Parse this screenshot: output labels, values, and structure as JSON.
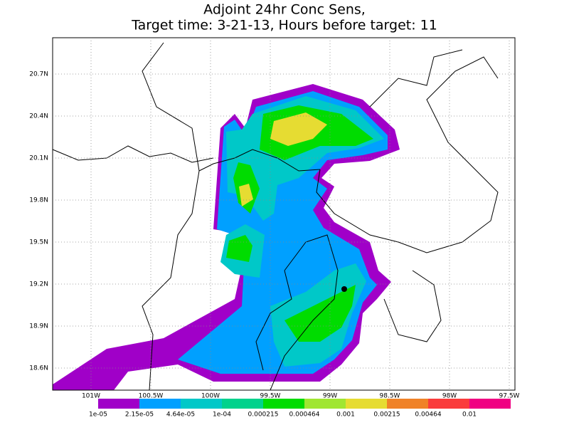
{
  "title": [
    "Adjoint 24hr Conc Sens,",
    "Target time: 3-21-13, Hours before target: 11"
  ],
  "map": {
    "lat_labels": [
      "20.7N",
      "20.4N",
      "20.1N",
      "19.8N",
      "19.5N",
      "19.2N",
      "18.9N",
      "18.6N"
    ],
    "lon_labels": [
      "101W",
      "100.5W",
      "100W",
      "99.5W",
      "99W",
      "98.5W",
      "98W",
      "97.5W"
    ]
  },
  "colorbar": {
    "labels": [
      "1e-05",
      "2.15e-05",
      "4.64e-05",
      "1e-04",
      "0.000215",
      "0.000464",
      "0.001",
      "0.00215",
      "0.00464",
      "0.01"
    ],
    "colors": [
      "#a000c8",
      "#00a0ff",
      "#00c8c8",
      "#00d28c",
      "#00dc00",
      "#a0e632",
      "#e6dc32",
      "#f08228",
      "#fa3c3c",
      "#f00082"
    ]
  }
}
